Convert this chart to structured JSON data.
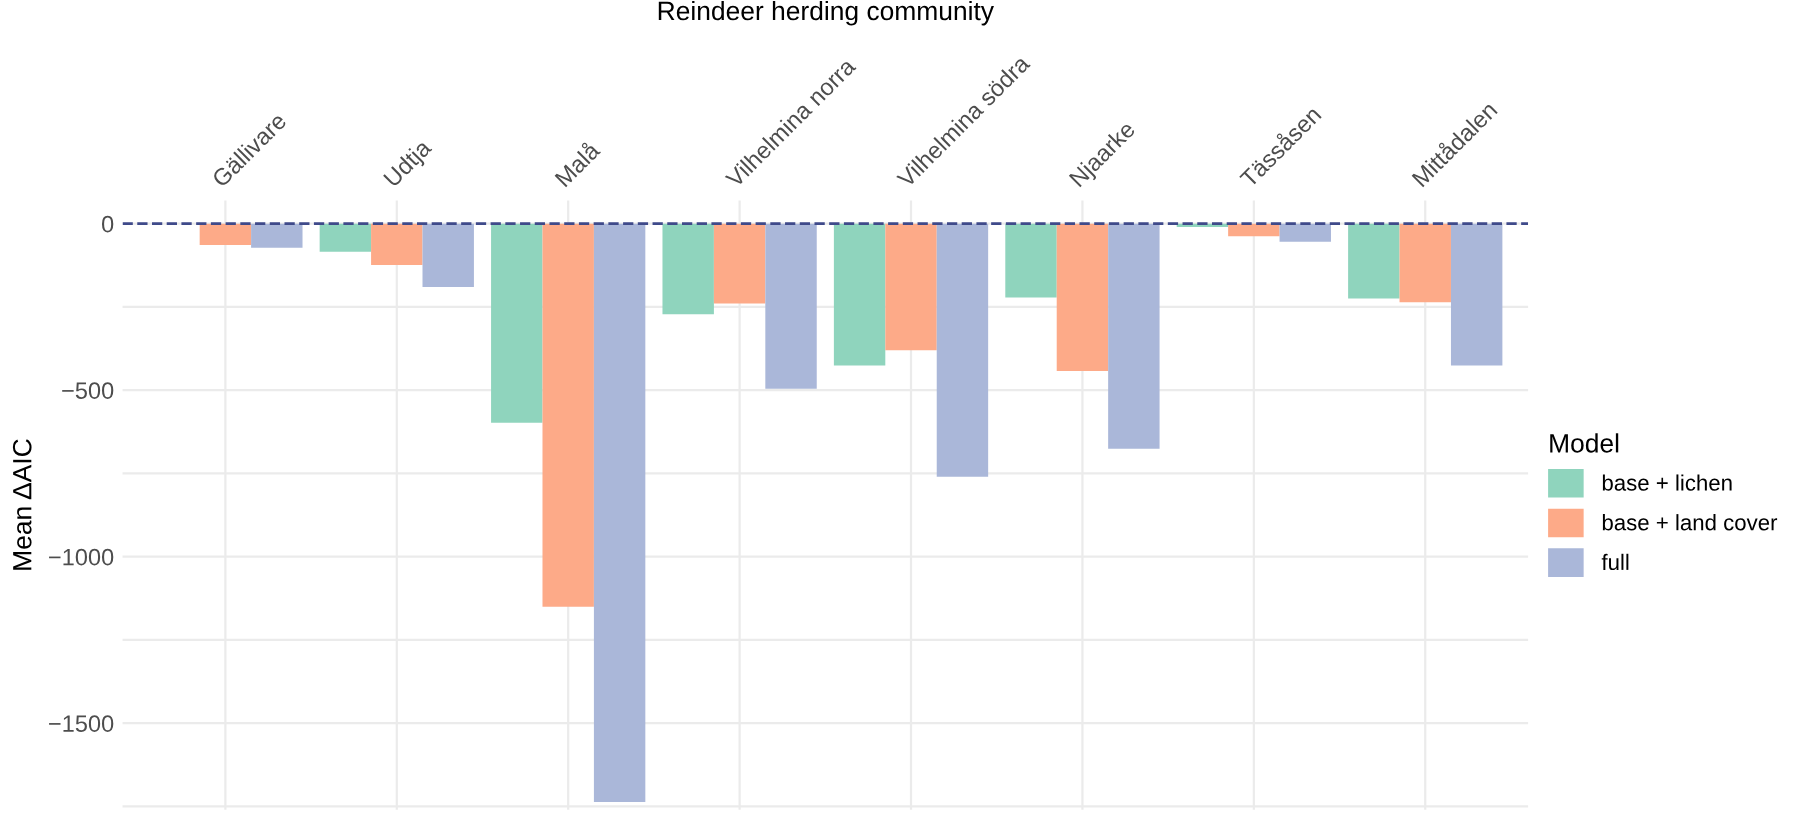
{
  "chart_data": {
    "type": "bar",
    "xlabel": "Reindeer herding community",
    "ylabel": "Mean ΔAIC",
    "legend_title": "Model",
    "legend": "right",
    "categories": [
      "Gällivare",
      "Udtja",
      "Malå",
      "Vilhelmina norra",
      "Vilhelmina södra",
      "Njaarke",
      "Tässåsen",
      "Mittådalen"
    ],
    "series": [
      {
        "name": "base + lichen",
        "color": "#8fd4bd",
        "values": [
          null,
          -84,
          -598,
          -272,
          -426,
          -222,
          -10,
          -225
        ]
      },
      {
        "name": "base + land cover",
        "color": "#fdaa88",
        "values": [
          -64,
          -124,
          -1150,
          -240,
          -380,
          -442,
          -38,
          -236
        ]
      },
      {
        "name": "full",
        "color": "#aab7d9",
        "values": [
          -72,
          -190,
          -1737,
          -496,
          -760,
          -676,
          -54,
          -426
        ]
      }
    ],
    "ylim": [
      -1760,
      70
    ],
    "yticks": [
      {
        "value": -1750,
        "label": null
      },
      -1500,
      {
        "value": -1250,
        "label": null
      },
      -1000,
      {
        "value": -750,
        "label": null
      },
      -500,
      {
        "value": -250,
        "label": null
      },
      0
    ],
    "grid": true,
    "ref_lines": [
      {
        "axis": "y",
        "value": 0,
        "color": "#3f4a8a",
        "line_style": "dashed"
      }
    ]
  }
}
